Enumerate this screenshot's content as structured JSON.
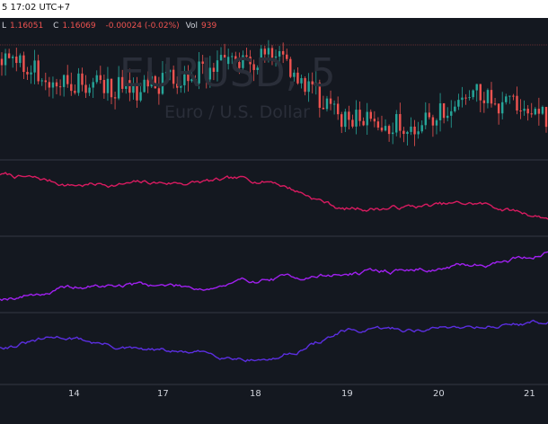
{
  "header": {
    "datetime": "5 17:02 UTC+7"
  },
  "ohlc": {
    "l_label": "L",
    "l_value": "1.16051",
    "c_label": "C",
    "c_value": "1.16069",
    "change": "-0.00024 (-0.02%)",
    "vol_label": "Vol",
    "vol_value": "939"
  },
  "watermark": {
    "symbol": "EURUSD, 5",
    "description": "Euro / U.S. Dollar"
  },
  "xaxis": {
    "labels": [
      "14",
      "17",
      "18",
      "19",
      "20",
      "21"
    ]
  },
  "colors": {
    "background": "#141820",
    "up": "#26a69a",
    "down": "#ef5350",
    "pane2": "#d81b60",
    "pane3": "#a020f0",
    "pane4": "#5b2ee0",
    "separator": "#2a2e39"
  },
  "chart_data": [
    {
      "type": "candlestick",
      "name": "EURUSD, 5",
      "x": [
        "13",
        "14",
        "15",
        "16",
        "17",
        "18",
        "19",
        "20",
        "21"
      ],
      "close": [
        1.1617,
        1.1613,
        1.1612,
        1.1615,
        1.1618,
        1.1607,
        1.1606,
        1.1611,
        1.1607
      ],
      "y_direction_note": "",
      "last_close": 1.16069
    },
    {
      "type": "line",
      "x": [
        "13",
        "14",
        "15",
        "16",
        "17",
        "18",
        "19",
        "20",
        "21"
      ],
      "values": [
        0.88,
        0.72,
        0.73,
        0.76,
        0.78,
        0.35,
        0.38,
        0.42,
        0.22
      ]
    },
    {
      "type": "line",
      "x": [
        "13",
        "14",
        "15",
        "16",
        "17",
        "18",
        "19",
        "20",
        "21"
      ],
      "values": [
        0.15,
        0.3,
        0.36,
        0.32,
        0.45,
        0.52,
        0.58,
        0.66,
        0.85
      ]
    },
    {
      "type": "line",
      "x": [
        "13",
        "14",
        "15",
        "16",
        "17",
        "18",
        "19",
        "20",
        "21"
      ],
      "values": [
        0.55,
        0.7,
        0.48,
        0.42,
        0.35,
        0.78,
        0.82,
        0.9,
        0.95
      ]
    }
  ]
}
